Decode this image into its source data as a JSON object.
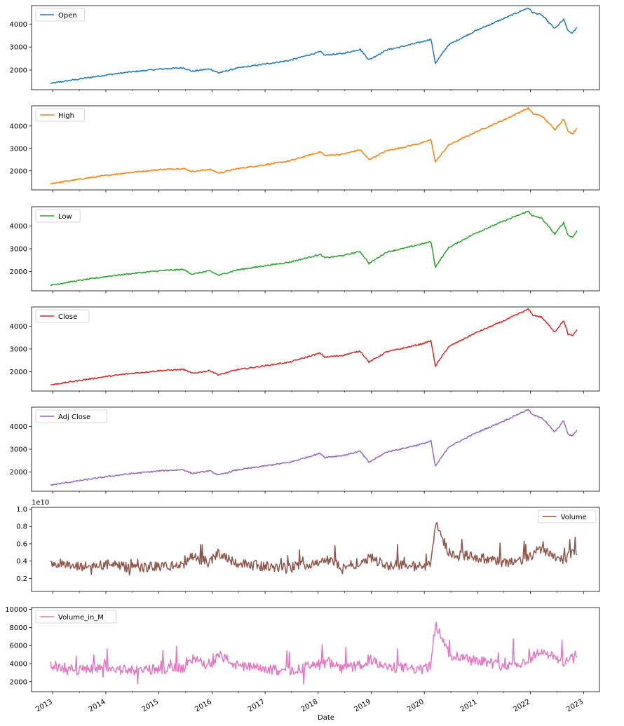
{
  "chart_data": {
    "type": "line",
    "xlabel": "Date",
    "x_tick_labels": [
      "2013",
      "2014",
      "2015",
      "2016",
      "2017",
      "2018",
      "2019",
      "2020",
      "2021",
      "2022",
      "2023"
    ],
    "x_range": [
      2012.6,
      2023.3
    ],
    "dates": [
      "2012-12",
      "2013-06",
      "2014-01",
      "2014-06",
      "2015-01",
      "2015-06",
      "2015-08",
      "2015-12",
      "2016-02",
      "2016-06",
      "2016-12",
      "2017-06",
      "2018-01",
      "2018-02",
      "2018-06",
      "2018-10",
      "2018-12",
      "2019-04",
      "2019-07",
      "2019-12",
      "2020-02",
      "2020-03",
      "2020-06",
      "2020-12",
      "2021-06",
      "2021-12",
      "2022-01",
      "2022-03",
      "2022-06",
      "2022-08",
      "2022-09",
      "2022-10",
      "2022-11"
    ],
    "series": [
      {
        "name": "Open",
        "color": "#1f77b4",
        "ylim": [
          1150,
          4800
        ],
        "yticks": [
          2000,
          3000,
          4000
        ],
        "ytick_labels": [
          "2000",
          "3000",
          "4000"
        ],
        "values": [
          1420,
          1600,
          1800,
          1920,
          2050,
          2100,
          1950,
          2050,
          1880,
          2080,
          2250,
          2420,
          2800,
          2650,
          2720,
          2900,
          2450,
          2880,
          3000,
          3230,
          3350,
          2300,
          3100,
          3700,
          4200,
          4700,
          4500,
          4400,
          3800,
          4200,
          3700,
          3600,
          3850
        ]
      },
      {
        "name": "High",
        "color": "#ff7f0e",
        "ylim": [
          1150,
          4900
        ],
        "yticks": [
          2000,
          3000,
          4000
        ],
        "ytick_labels": [
          "2000",
          "3000",
          "4000"
        ],
        "values": [
          1430,
          1610,
          1810,
          1930,
          2060,
          2110,
          1970,
          2070,
          1900,
          2090,
          2260,
          2440,
          2850,
          2680,
          2740,
          2940,
          2500,
          2900,
          3020,
          3250,
          3390,
          2400,
          3150,
          3720,
          4230,
          4800,
          4550,
          4450,
          3850,
          4300,
          3780,
          3650,
          3900
        ]
      },
      {
        "name": "Low",
        "color": "#2ca02c",
        "ylim": [
          1150,
          4850
        ],
        "yticks": [
          2000,
          3000,
          4000
        ],
        "ytick_labels": [
          "2000",
          "3000",
          "4000"
        ],
        "values": [
          1400,
          1590,
          1790,
          1900,
          2040,
          2090,
          1880,
          2030,
          1830,
          2060,
          2240,
          2410,
          2750,
          2600,
          2700,
          2880,
          2350,
          2860,
          2980,
          3210,
          3320,
          2200,
          3050,
          3680,
          4180,
          4650,
          4450,
          4350,
          3650,
          4150,
          3600,
          3500,
          3800
        ]
      },
      {
        "name": "Close",
        "color": "#d62728",
        "ylim": [
          1150,
          4850
        ],
        "yticks": [
          2000,
          3000,
          4000
        ],
        "ytick_labels": [
          "2000",
          "3000",
          "4000"
        ],
        "values": [
          1420,
          1600,
          1800,
          1920,
          2050,
          2100,
          1930,
          2050,
          1860,
          2080,
          2250,
          2420,
          2820,
          2640,
          2720,
          2910,
          2420,
          2880,
          3000,
          3230,
          3360,
          2250,
          3100,
          3700,
          4200,
          4750,
          4500,
          4400,
          3750,
          4250,
          3650,
          3580,
          3850
        ]
      },
      {
        "name": "Adj Close",
        "color": "#9467bd",
        "ylim": [
          1150,
          4850
        ],
        "yticks": [
          2000,
          3000,
          4000
        ],
        "ytick_labels": [
          "2000",
          "3000",
          "4000"
        ],
        "values": [
          1420,
          1600,
          1800,
          1920,
          2050,
          2100,
          1930,
          2050,
          1860,
          2080,
          2250,
          2420,
          2820,
          2640,
          2720,
          2910,
          2420,
          2880,
          3000,
          3230,
          3360,
          2250,
          3100,
          3700,
          4200,
          4750,
          4500,
          4400,
          3750,
          4250,
          3650,
          3580,
          3850
        ]
      },
      {
        "name": "Volume",
        "color": "#8c564b",
        "ylim": [
          0.05,
          1.02
        ],
        "yticks": [
          0.2,
          0.4,
          0.6,
          0.8,
          1.0
        ],
        "ytick_labels": [
          "0.2",
          "0.4",
          "0.6",
          "0.8",
          "1.0"
        ],
        "offset_text": "1e10",
        "values": [
          0.38,
          0.33,
          0.36,
          0.32,
          0.34,
          0.35,
          0.45,
          0.38,
          0.5,
          0.38,
          0.34,
          0.32,
          0.4,
          0.42,
          0.34,
          0.38,
          0.45,
          0.35,
          0.36,
          0.33,
          0.38,
          0.85,
          0.5,
          0.45,
          0.38,
          0.42,
          0.48,
          0.55,
          0.46,
          0.42,
          0.45,
          0.5,
          0.47
        ]
      },
      {
        "name": "Volume_in_M",
        "color": "#e377c2",
        "ylim": [
          900,
          10200
        ],
        "yticks": [
          2000,
          4000,
          6000,
          8000,
          10000
        ],
        "ytick_labels": [
          "2000",
          "4000",
          "6000",
          "8000",
          "10000"
        ],
        "values": [
          3800,
          3300,
          3600,
          3200,
          3400,
          3500,
          4500,
          3800,
          5000,
          3800,
          3400,
          3200,
          4000,
          4200,
          3400,
          3800,
          4500,
          3500,
          3600,
          3300,
          3800,
          8500,
          5000,
          4500,
          3800,
          4200,
          4800,
          5500,
          4600,
          4200,
          4500,
          5000,
          4700
        ]
      }
    ]
  }
}
